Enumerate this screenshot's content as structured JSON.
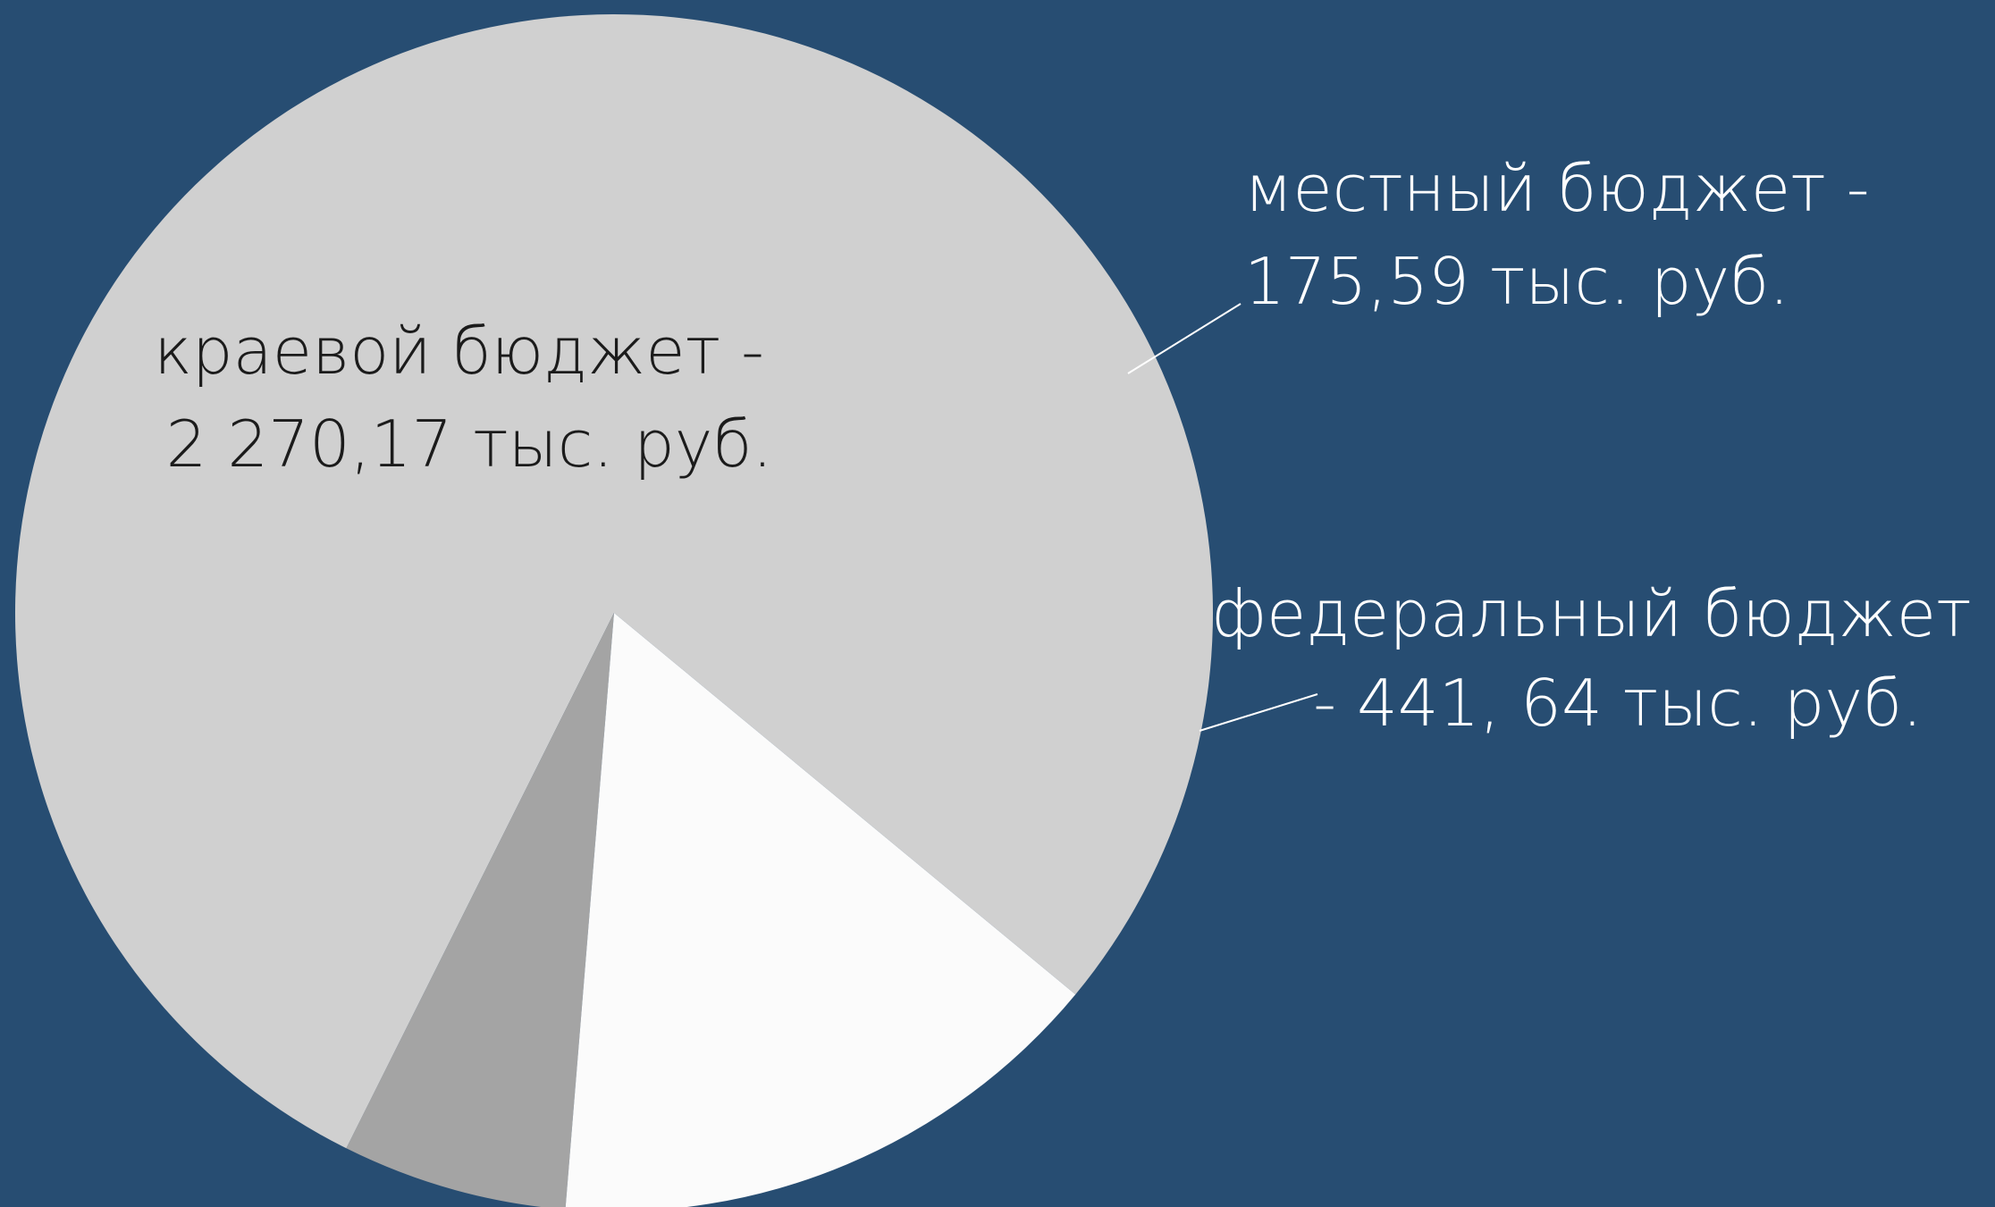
{
  "background": "#274d72",
  "chart_data": {
    "type": "pie",
    "categories": [
      "краевой бюджет",
      "местный бюджет",
      "федеральный бюджет"
    ],
    "values": [
      2270.17,
      175.59,
      441.64
    ],
    "colors": [
      "#d0d0d0",
      "#a4a4a4",
      "#fbfbfb"
    ],
    "labels": [
      {
        "line1": "краевой бюджет -",
        "line2": "2 270,17 тыс. руб.",
        "color": "#1b1b1b"
      },
      {
        "line1": "местный бюджет -",
        "line2": "175,59 тыс. руб.",
        "color": "#ffffff"
      },
      {
        "line1": "федеральный бюджет",
        "line2": "- 441, 64 тыс. руб.",
        "color": "#ffffff"
      }
    ]
  }
}
